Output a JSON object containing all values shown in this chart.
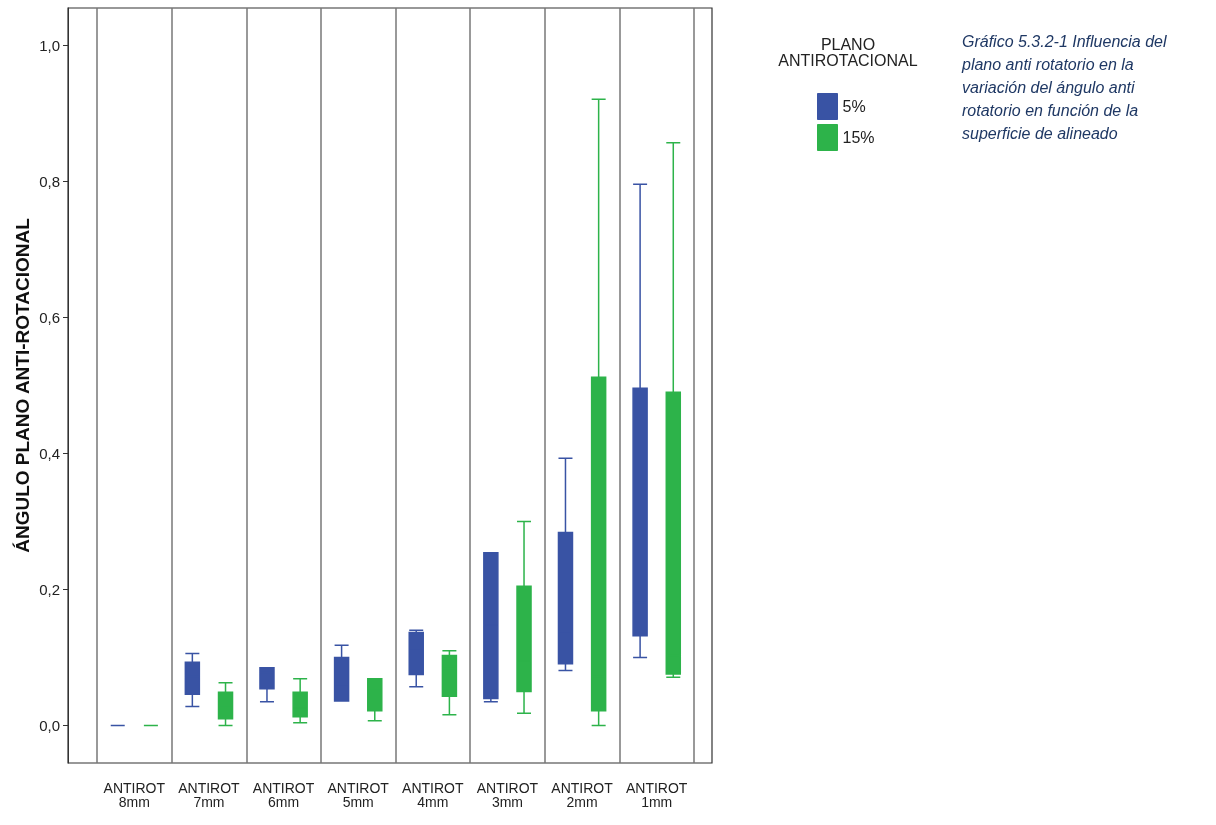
{
  "chart_data": {
    "type": "box",
    "ylabel": "ÁNGULO PLANO ANTI-ROTACIONAL",
    "legend_title": "PLANO ANTIROTACIONAL",
    "legend": "top right",
    "grid": "x",
    "categories": [
      "ANTIROT 8mm",
      "ANTIROT 7mm",
      "ANTIROT 6mm",
      "ANTIROT 5mm",
      "ANTIROT 4mm",
      "ANTIROT 3mm",
      "ANTIROT 2mm",
      "ANTIROT 1mm"
    ],
    "ylim": [
      -0.055,
      1.055
    ],
    "yticks": [
      {
        "value": 0,
        "label": "0,0"
      },
      {
        "value": 0.2,
        "label": "0,2"
      },
      {
        "value": 0.4,
        "label": "0,4"
      },
      {
        "value": 0.6,
        "label": "0,6"
      },
      {
        "value": 0.8,
        "label": "0,8"
      },
      {
        "value": 1,
        "label": "1,0"
      }
    ],
    "series": [
      {
        "name": "5%",
        "color": "#3953a4",
        "boxes": [
          {
            "low": 0,
            "q1": 0,
            "median": 0,
            "q3": 0,
            "high": 0
          },
          {
            "low": 0.028,
            "q1": 0.046,
            "median": 0.072,
            "q3": 0.093,
            "high": 0.106
          },
          {
            "low": 0.035,
            "q1": 0.054,
            "median": 0.078,
            "q3": 0.085,
            "high": 0.085
          },
          {
            "low": 0.036,
            "q1": 0.036,
            "median": 0.06,
            "q3": 0.1,
            "high": 0.118
          },
          {
            "low": 0.057,
            "q1": 0.075,
            "median": 0.113,
            "q3": 0.137,
            "high": 0.14
          },
          {
            "low": 0.035,
            "q1": 0.04,
            "median": 0.148,
            "q3": 0.254,
            "high": 0.254
          },
          {
            "low": 0.081,
            "q1": 0.091,
            "median": 0.138,
            "q3": 0.284,
            "high": 0.393
          },
          {
            "low": 0.1,
            "q1": 0.132,
            "median": 0.181,
            "q3": 0.496,
            "high": 0.796
          }
        ]
      },
      {
        "name": "15%",
        "color": "#2db34a",
        "boxes": [
          {
            "low": 0,
            "q1": 0,
            "median": 0,
            "q3": 0,
            "high": 0
          },
          {
            "low": 0,
            "q1": 0.01,
            "median": 0.029,
            "q3": 0.049,
            "high": 0.063
          },
          {
            "low": 0.004,
            "q1": 0.013,
            "median": 0.026,
            "q3": 0.049,
            "high": 0.069
          },
          {
            "low": 0.007,
            "q1": 0.022,
            "median": 0.054,
            "q3": 0.069,
            "high": 0.069
          },
          {
            "low": 0.016,
            "q1": 0.043,
            "median": 0.084,
            "q3": 0.103,
            "high": 0.11
          },
          {
            "low": 0.018,
            "q1": 0.05,
            "median": 0.095,
            "q3": 0.205,
            "high": 0.3
          },
          {
            "low": 0,
            "q1": 0.022,
            "median": 0.072,
            "q3": 0.512,
            "high": 0.921
          },
          {
            "low": 0.071,
            "q1": 0.076,
            "median": 0.103,
            "q3": 0.49,
            "high": 0.857
          }
        ]
      }
    ],
    "annotations": [
      "Gráfico 5.3.2-1 Influencia del plano anti rotatorio en la variación del ángulo anti rotatorio en función de la superficie de alineado"
    ]
  }
}
